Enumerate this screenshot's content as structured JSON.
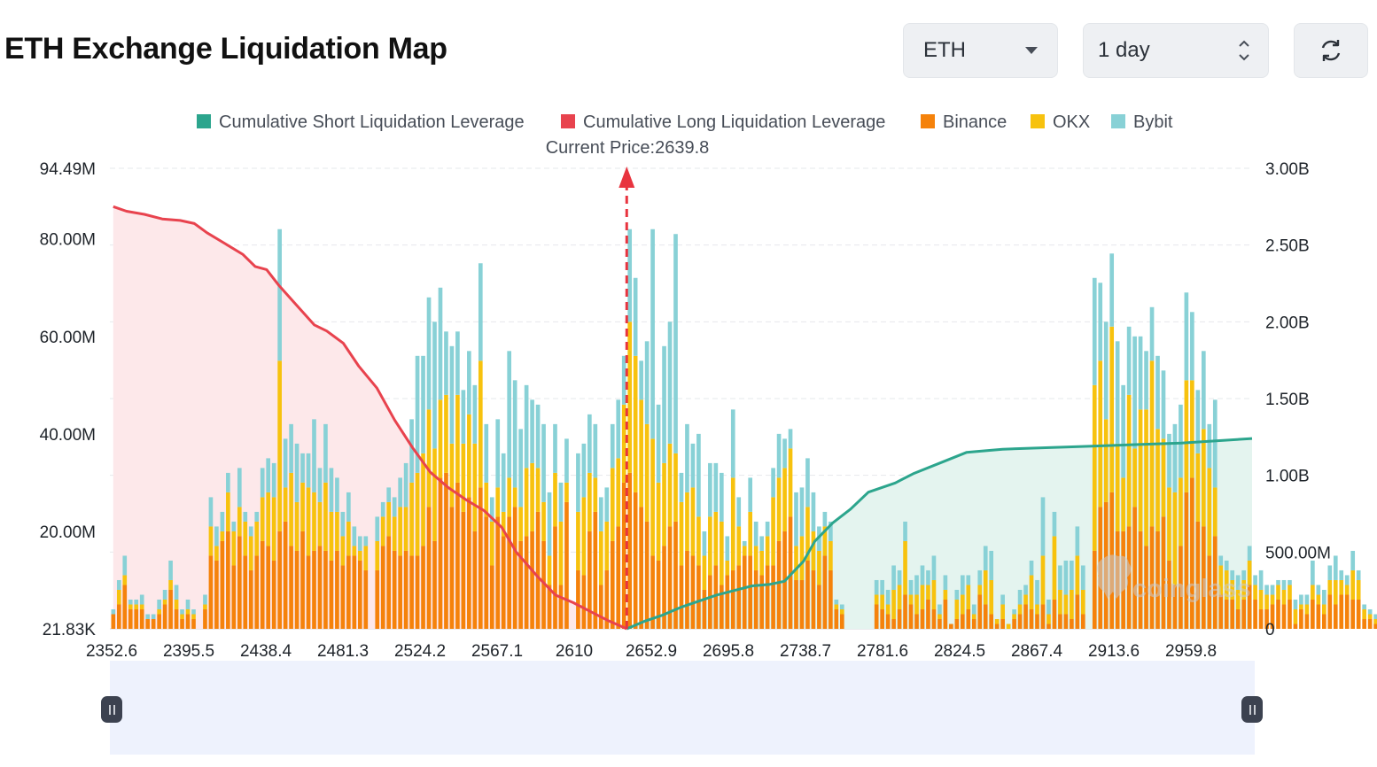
{
  "page_title": "ETH Exchange Liquidation Map",
  "controls": {
    "coin_select": "ETH",
    "range_select": "1 day",
    "refresh_icon": "refresh-icon"
  },
  "legend": [
    {
      "label": "Cumulative Short Liquidation Leverage",
      "color": "#2ca58d"
    },
    {
      "label": "Cumulative Long Liquidation Leverage",
      "color": "#e8434e"
    },
    {
      "label": "Binance",
      "color": "#f5820b"
    },
    {
      "label": "OKX",
      "color": "#f7c20e"
    },
    {
      "label": "Bybit",
      "color": "#88d1d6"
    }
  ],
  "current_price_label": "Current Price:2639.8",
  "watermark": "coinglass",
  "chart_data": {
    "type": "bar",
    "current_price": 2639.8,
    "x_tick_labels": [
      "2352.6",
      "2395.5",
      "2438.4",
      "2481.3",
      "2524.2",
      "2567.1",
      "2610",
      "2652.9",
      "2695.8",
      "2738.7",
      "2781.6",
      "2824.5",
      "2867.4",
      "2913.6",
      "2959.8"
    ],
    "x_range": [
      2350.7,
      2989.6
    ],
    "y_left": {
      "tick_labels": [
        "21.83K",
        "20.00M",
        "40.00M",
        "60.00M",
        "80.00M",
        "94.49M"
      ],
      "tick_values": [
        0.02183,
        20,
        40,
        60,
        80,
        94.49
      ],
      "range": [
        0,
        94.49
      ],
      "unit": "M"
    },
    "y_right": {
      "tick_labels": [
        "0",
        "500.00M",
        "1.00B",
        "1.50B",
        "2.00B",
        "2.50B",
        "3.00B"
      ],
      "tick_values": [
        0,
        0.5,
        1.0,
        1.5,
        2.0,
        2.5,
        3.0
      ],
      "range": [
        0,
        3.0
      ],
      "unit": "B"
    },
    "grid": true,
    "legend_position": "top",
    "bar_price_step": 3.21,
    "bars_start_price": 2352.6,
    "series": [
      {
        "name": "Binance",
        "color": "#f5820b",
        "values": [
          3,
          5,
          9,
          4,
          4,
          4,
          2,
          2,
          3,
          5,
          8,
          4,
          2,
          3,
          2,
          0,
          4,
          15,
          14,
          18,
          20,
          13,
          19,
          15,
          12,
          15,
          18,
          17,
          14,
          20,
          22,
          17,
          16,
          20,
          15,
          16,
          17,
          16,
          14,
          16,
          13,
          15,
          15,
          14,
          12,
          0,
          12,
          17,
          19,
          16,
          15,
          16,
          15,
          15,
          17,
          25,
          18,
          31,
          32,
          25,
          30,
          24,
          27,
          20,
          29,
          23,
          13,
          23,
          19,
          23,
          25,
          18,
          19,
          20,
          24,
          18,
          9,
          21,
          9,
          26,
          0,
          12,
          11,
          20,
          24,
          9,
          12,
          18,
          21,
          30,
          32,
          28,
          25,
          22,
          15,
          14,
          17,
          21,
          22,
          13,
          16,
          15,
          13,
          8,
          11,
          13,
          9,
          11,
          12,
          13,
          15,
          15,
          12,
          11,
          13,
          13,
          18,
          20,
          23,
          10,
          10,
          14,
          12,
          9,
          15,
          12,
          4,
          3,
          0,
          0,
          0,
          0,
          0,
          5,
          4,
          3,
          2,
          4,
          7,
          5,
          3,
          4,
          6,
          4,
          2,
          6,
          1,
          2,
          3,
          4,
          2,
          7,
          5,
          3,
          1,
          2,
          0,
          2,
          3,
          5,
          4,
          3,
          5,
          1,
          6,
          3,
          3,
          2,
          7,
          3,
          0,
          16,
          25,
          26,
          28,
          20,
          20,
          21,
          25,
          20,
          17,
          21,
          20,
          23,
          14,
          9,
          17,
          28,
          31,
          22,
          21,
          15,
          19,
          7,
          6,
          6,
          4,
          6,
          9,
          6,
          4,
          4,
          5,
          6,
          5,
          6,
          1,
          4,
          3,
          6,
          5,
          3,
          7,
          5,
          7,
          7,
          6,
          6,
          2,
          2,
          1,
          2,
          1,
          1,
          0,
          0,
          2,
          1,
          0,
          1,
          0,
          1,
          1,
          1,
          1,
          0,
          1,
          0,
          1,
          0,
          1,
          0,
          1,
          0,
          0,
          0,
          0,
          1,
          1,
          0,
          1,
          0,
          1,
          0,
          0,
          1,
          0,
          0,
          0,
          1,
          1,
          0,
          0,
          1,
          0,
          0,
          0,
          0,
          1,
          1,
          1,
          0,
          1,
          0,
          1,
          1,
          1,
          1,
          1,
          0,
          1,
          1,
          1,
          0,
          1
        ]
      },
      {
        "name": "OKX",
        "color": "#f7c20e",
        "values": [
          0,
          3,
          2,
          1,
          1,
          1,
          0,
          0,
          1,
          1,
          2,
          2,
          1,
          1,
          1,
          0,
          1,
          6,
          3,
          2,
          8,
          7,
          6,
          7,
          7,
          7,
          9,
          11,
          13,
          35,
          7,
          15,
          10,
          10,
          14,
          12,
          9,
          14,
          10,
          8,
          6,
          7,
          2,
          2,
          5,
          0,
          6,
          6,
          7,
          7,
          10,
          9,
          15,
          17,
          19,
          20,
          19,
          16,
          16,
          13,
          18,
          14,
          17,
          18,
          26,
          7,
          9,
          6,
          5,
          8,
          4,
          7,
          14,
          14,
          9,
          8,
          6,
          11,
          13,
          4,
          0,
          12,
          16,
          12,
          7,
          11,
          10,
          15,
          14,
          16,
          31,
          28,
          22,
          20,
          24,
          16,
          17,
          17,
          14,
          13,
          12,
          14,
          10,
          7,
          12,
          11,
          13,
          3,
          19,
          8,
          2,
          9,
          5,
          5,
          6,
          14,
          13,
          13,
          14,
          7,
          9,
          11,
          8,
          7,
          6,
          6,
          1,
          1,
          0,
          0,
          0,
          0,
          0,
          2,
          3,
          2,
          6,
          5,
          11,
          2,
          4,
          5,
          3,
          6,
          1,
          2,
          0,
          4,
          4,
          5,
          1,
          2,
          7,
          7,
          1,
          3,
          1,
          1,
          2,
          2,
          7,
          2,
          10,
          2,
          13,
          5,
          4,
          6,
          8,
          5,
          0,
          34,
          30,
          17,
          34,
          18,
          11,
          27,
          12,
          25,
          28,
          34,
          21,
          16,
          15,
          19,
          14,
          23,
          20,
          14,
          20,
          18,
          10,
          6,
          6,
          4,
          4,
          4,
          5,
          3,
          4,
          3,
          2,
          3,
          3,
          3,
          3,
          1,
          2,
          3,
          2,
          2,
          3,
          5,
          3,
          2,
          6,
          4,
          2,
          1,
          1,
          2,
          1,
          1,
          0,
          1,
          1,
          0,
          0,
          0,
          0,
          1,
          0,
          0,
          0,
          0,
          0,
          0,
          0,
          0,
          0,
          0,
          0,
          0,
          0,
          0,
          0,
          0,
          0,
          0,
          0,
          0,
          0,
          0,
          0,
          0,
          0,
          0,
          0,
          0,
          0,
          0,
          0,
          0,
          0,
          0,
          0,
          0,
          0,
          0,
          0,
          0,
          0,
          0,
          0,
          0,
          0,
          0,
          0,
          0,
          0,
          0,
          0,
          0,
          0,
          0,
          0
        ]
      },
      {
        "name": "Bybit",
        "color": "#88d1d6",
        "values": [
          1,
          2,
          4,
          1,
          1,
          2,
          1,
          1,
          2,
          2,
          4,
          3,
          1,
          2,
          1,
          0,
          2,
          6,
          4,
          4,
          4,
          2,
          8,
          2,
          2,
          2,
          6,
          7,
          7,
          27,
          10,
          10,
          12,
          6,
          7,
          15,
          7,
          12,
          9,
          7,
          5,
          6,
          4,
          3,
          2,
          0,
          5,
          3,
          3,
          4,
          6,
          9,
          13,
          24,
          20,
          23,
          26,
          23,
          13,
          20,
          13,
          11,
          13,
          12,
          20,
          12,
          5,
          14,
          12,
          26,
          22,
          16,
          17,
          13,
          13,
          16,
          13,
          10,
          8,
          9,
          0,
          12,
          11,
          12,
          11,
          7,
          7,
          9,
          12,
          10,
          19,
          16,
          8,
          17,
          43,
          16,
          24,
          25,
          45,
          6,
          14,
          9,
          17,
          5,
          11,
          10,
          10,
          5,
          14,
          6,
          1,
          7,
          5,
          3,
          3,
          6,
          9,
          6,
          4,
          11,
          10,
          10,
          8,
          5,
          3,
          4,
          1,
          1,
          0,
          0,
          0,
          0,
          0,
          3,
          3,
          3,
          5,
          3,
          4,
          3,
          4,
          4,
          3,
          5,
          2,
          3,
          0,
          2,
          4,
          2,
          2,
          3,
          5,
          6,
          0,
          2,
          0,
          1,
          3,
          2,
          3,
          5,
          12,
          3,
          5,
          5,
          7,
          6,
          6,
          5,
          0,
          22,
          16,
          20,
          15,
          21,
          19,
          14,
          23,
          15,
          12,
          11,
          15,
          14,
          11,
          14,
          15,
          18,
          14,
          13,
          16,
          9,
          18,
          2,
          2,
          2,
          3,
          2,
          3,
          2,
          4,
          2,
          2,
          1,
          2,
          1,
          2,
          2,
          2,
          5,
          2,
          3,
          3,
          5,
          2,
          2,
          4,
          2,
          1,
          1,
          1,
          1,
          1,
          0,
          0,
          0,
          0,
          1,
          0,
          0,
          0,
          0,
          1,
          0,
          0,
          1,
          1,
          1,
          0,
          0,
          0,
          0,
          1,
          0,
          0,
          0,
          0,
          1,
          0,
          0,
          0,
          1,
          0,
          1,
          0,
          0,
          0,
          0,
          1,
          0,
          0,
          0,
          0,
          0,
          0,
          0,
          0,
          0,
          0,
          0,
          0,
          0,
          0,
          0,
          0,
          0,
          0,
          0,
          0,
          0,
          0,
          0,
          0,
          0,
          0,
          0
        ]
      },
      {
        "name": "Cumulative Long Liquidation Leverage",
        "color": "#e8434e",
        "x": [
          2352.6,
          2360,
          2370,
          2380,
          2390,
          2398,
          2405,
          2415,
          2425,
          2432,
          2438.4,
          2445,
          2455,
          2465,
          2472,
          2481.3,
          2490,
          2500,
          2510,
          2520,
          2530,
          2540,
          2550,
          2560,
          2570,
          2578,
          2590,
          2600,
          2610,
          2620,
          2630,
          2638,
          2639.8
        ],
        "values": [
          2.75,
          2.72,
          2.7,
          2.67,
          2.66,
          2.64,
          2.58,
          2.51,
          2.44,
          2.36,
          2.34,
          2.24,
          2.11,
          1.98,
          1.94,
          1.86,
          1.71,
          1.57,
          1.36,
          1.18,
          1.02,
          0.92,
          0.84,
          0.77,
          0.66,
          0.5,
          0.34,
          0.22,
          0.17,
          0.11,
          0.05,
          0.01,
          0
        ]
      },
      {
        "name": "Cumulative Short Liquidation Leverage",
        "color": "#2ca58d",
        "x": [
          2639.8,
          2650,
          2660,
          2670,
          2680,
          2690,
          2700,
          2710,
          2720,
          2728,
          2738.7,
          2745,
          2755,
          2765,
          2775,
          2790,
          2800,
          2815,
          2830,
          2850,
          2900,
          2950,
          2989.6
        ],
        "values": [
          0,
          0.05,
          0.09,
          0.14,
          0.18,
          0.22,
          0.25,
          0.28,
          0.29,
          0.31,
          0.44,
          0.57,
          0.69,
          0.78,
          0.89,
          0.95,
          1.01,
          1.08,
          1.15,
          1.17,
          1.19,
          1.21,
          1.24
        ]
      }
    ]
  }
}
